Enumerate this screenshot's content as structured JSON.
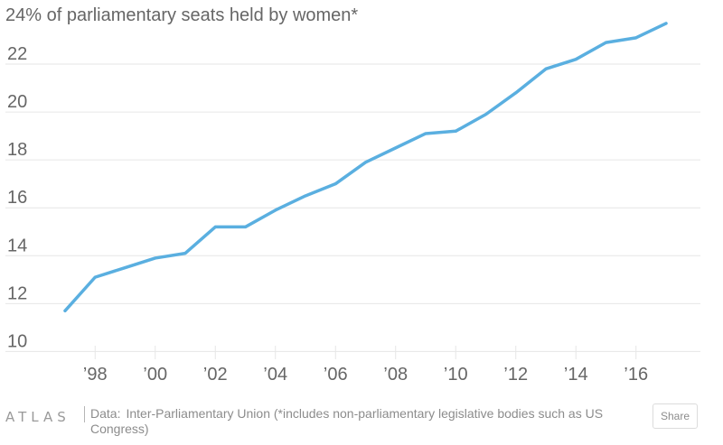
{
  "chart_data": {
    "type": "line",
    "title": "24% of parliamentary seats held by women*",
    "x": [
      1997,
      1998,
      1999,
      2000,
      2001,
      2002,
      2003,
      2004,
      2005,
      2006,
      2007,
      2008,
      2009,
      2010,
      2011,
      2012,
      2013,
      2014,
      2015,
      2016,
      2017
    ],
    "series": [
      {
        "values": [
          11.7,
          13.1,
          13.5,
          13.9,
          14.1,
          15.2,
          15.2,
          15.9,
          16.5,
          17.0,
          17.9,
          18.5,
          19.1,
          19.2,
          19.9,
          20.8,
          21.8,
          22.2,
          22.9,
          23.1,
          23.7
        ]
      }
    ],
    "x_tick_values": [
      1998,
      2000,
      2002,
      2004,
      2006,
      2008,
      2010,
      2012,
      2014,
      2016
    ],
    "x_tick_labels": [
      "’98",
      "’00",
      "’02",
      "’04",
      "’06",
      "’08",
      "’10",
      "’12",
      "’14",
      "’16"
    ],
    "y_ticks": [
      10,
      12,
      14,
      16,
      18,
      20,
      22
    ],
    "xlim": [
      1997,
      2017
    ],
    "ylim": [
      9.6,
      24.3
    ],
    "grid": true,
    "line_color": "#5aafe0"
  },
  "footer": {
    "logo": "ATLAS",
    "source_label": "Data:",
    "source_text": "Inter-Parliamentary Union (*includes non-parliamentary legislative bodies such as US Congress)",
    "share_label": "Share"
  }
}
